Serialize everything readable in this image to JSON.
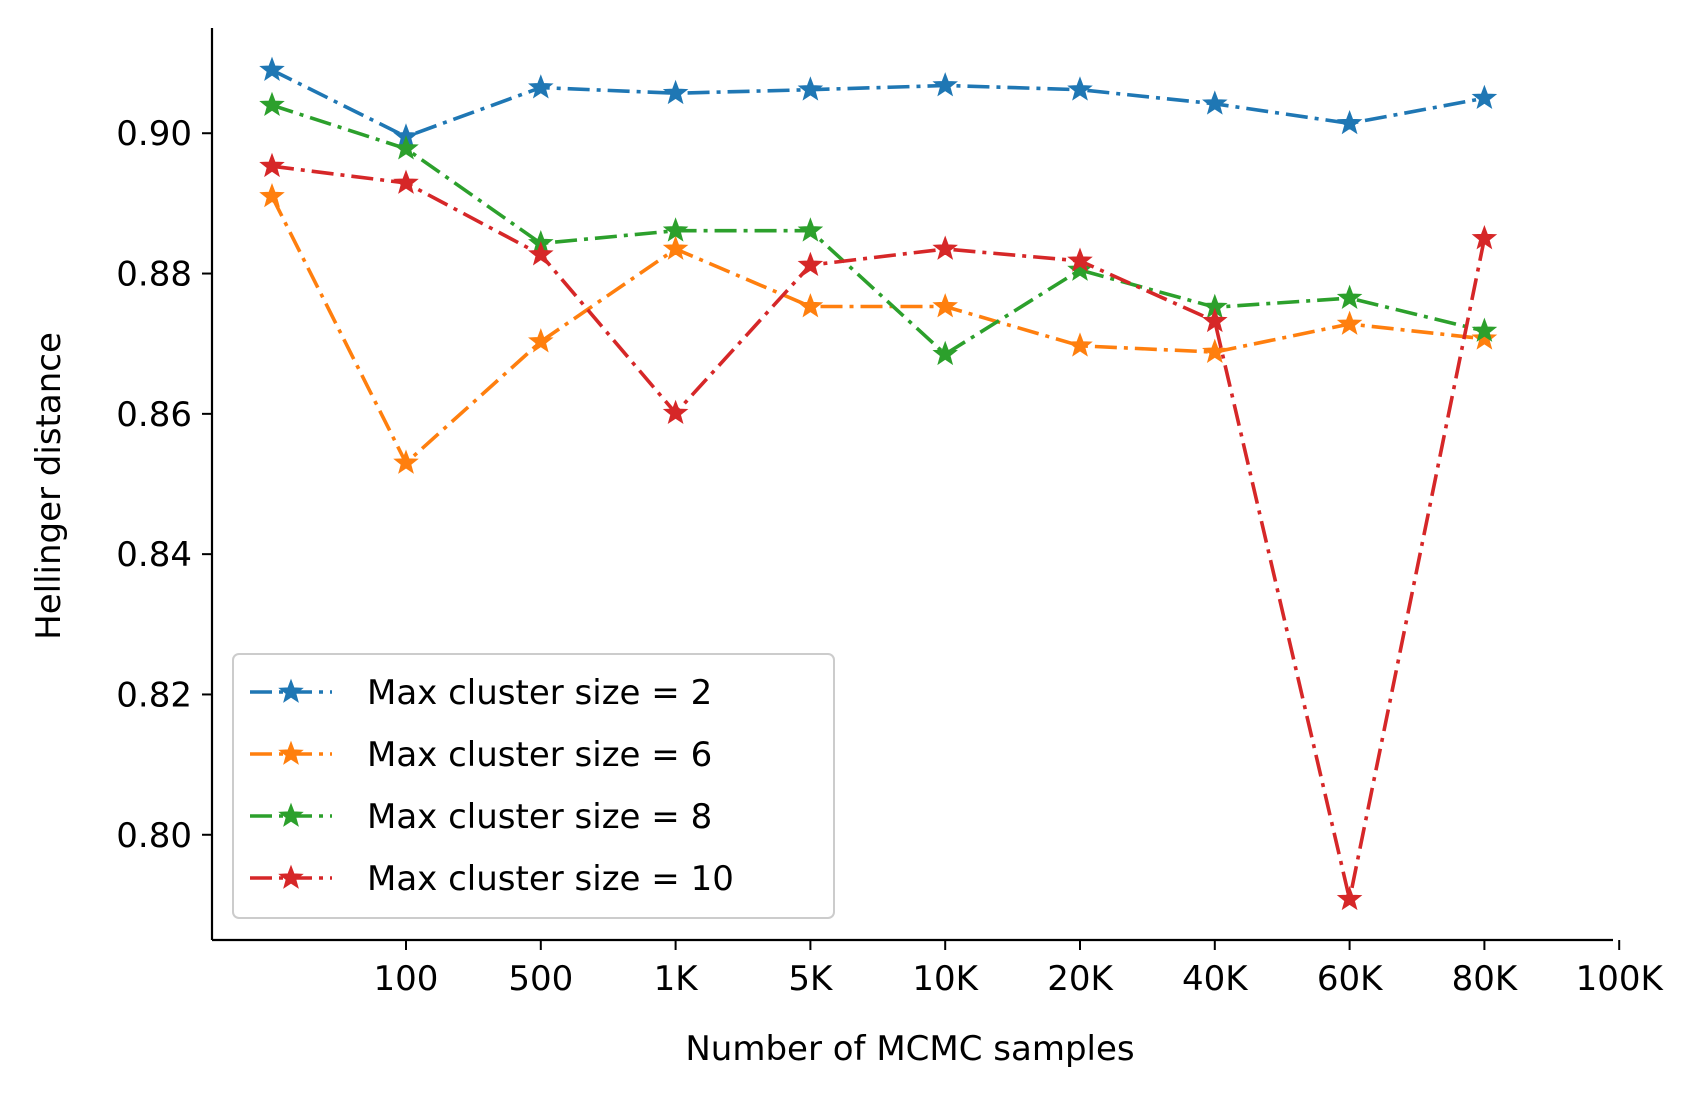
{
  "chart_data": {
    "type": "line",
    "xlabel": "Number of MCMC samples",
    "ylabel": "Hellinger distance",
    "x_tick_labels": [
      "100",
      "500",
      "1K",
      "5K",
      "10K",
      "20K",
      "40K",
      "60K",
      "80K",
      "100K"
    ],
    "y_ticks": [
      0.8,
      0.82,
      0.84,
      0.86,
      0.88,
      0.9
    ],
    "y_tick_labels": [
      "0.80",
      "0.82",
      "0.84",
      "0.86",
      "0.88",
      "0.90"
    ],
    "ylim": [
      0.785,
      0.915
    ],
    "grid": false,
    "legend_position": "lower-left",
    "series": [
      {
        "name": "Max cluster size = 2",
        "color": "#1f77b4",
        "points": [
          [
            "",
            0.909
          ],
          [
            "100",
            0.8995
          ],
          [
            "500",
            0.9065
          ],
          [
            "1K",
            0.9057
          ],
          [
            "5K",
            0.9062
          ],
          [
            "10K",
            0.9068
          ],
          [
            "20K",
            0.9062
          ],
          [
            "40K",
            0.9042
          ],
          [
            "60K",
            0.9014
          ],
          [
            "80K",
            0.905
          ]
        ]
      },
      {
        "name": "Max cluster size = 6",
        "color": "#ff7f0e",
        "points": [
          [
            "",
            0.891
          ],
          [
            "100",
            0.853
          ],
          [
            "500",
            0.8703
          ],
          [
            "1K",
            0.8835
          ],
          [
            "5K",
            0.8753
          ],
          [
            "10K",
            0.8753
          ],
          [
            "20K",
            0.8697
          ],
          [
            "40K",
            0.8688
          ],
          [
            "60K",
            0.8728
          ],
          [
            "80K",
            0.8707
          ]
        ]
      },
      {
        "name": "Max cluster size = 8",
        "color": "#2ca02c",
        "points": [
          [
            "",
            0.904
          ],
          [
            "100",
            0.8978
          ],
          [
            "500",
            0.8843
          ],
          [
            "1K",
            0.8861
          ],
          [
            "5K",
            0.8861
          ],
          [
            "10K",
            0.8685
          ],
          [
            "20K",
            0.8805
          ],
          [
            "40K",
            0.8752
          ],
          [
            "60K",
            0.8765
          ],
          [
            "80K",
            0.8718
          ]
        ]
      },
      {
        "name": "Max cluster size = 10",
        "color": "#d62728",
        "points": [
          [
            "",
            0.8953
          ],
          [
            "100",
            0.8929
          ],
          [
            "500",
            0.8827
          ],
          [
            "1K",
            0.8601
          ],
          [
            "5K",
            0.8812
          ],
          [
            "10K",
            0.8835
          ],
          [
            "20K",
            0.8818
          ],
          [
            "40K",
            0.8732
          ],
          [
            "60K",
            0.7908
          ],
          [
            "80K",
            0.885
          ]
        ]
      }
    ]
  }
}
